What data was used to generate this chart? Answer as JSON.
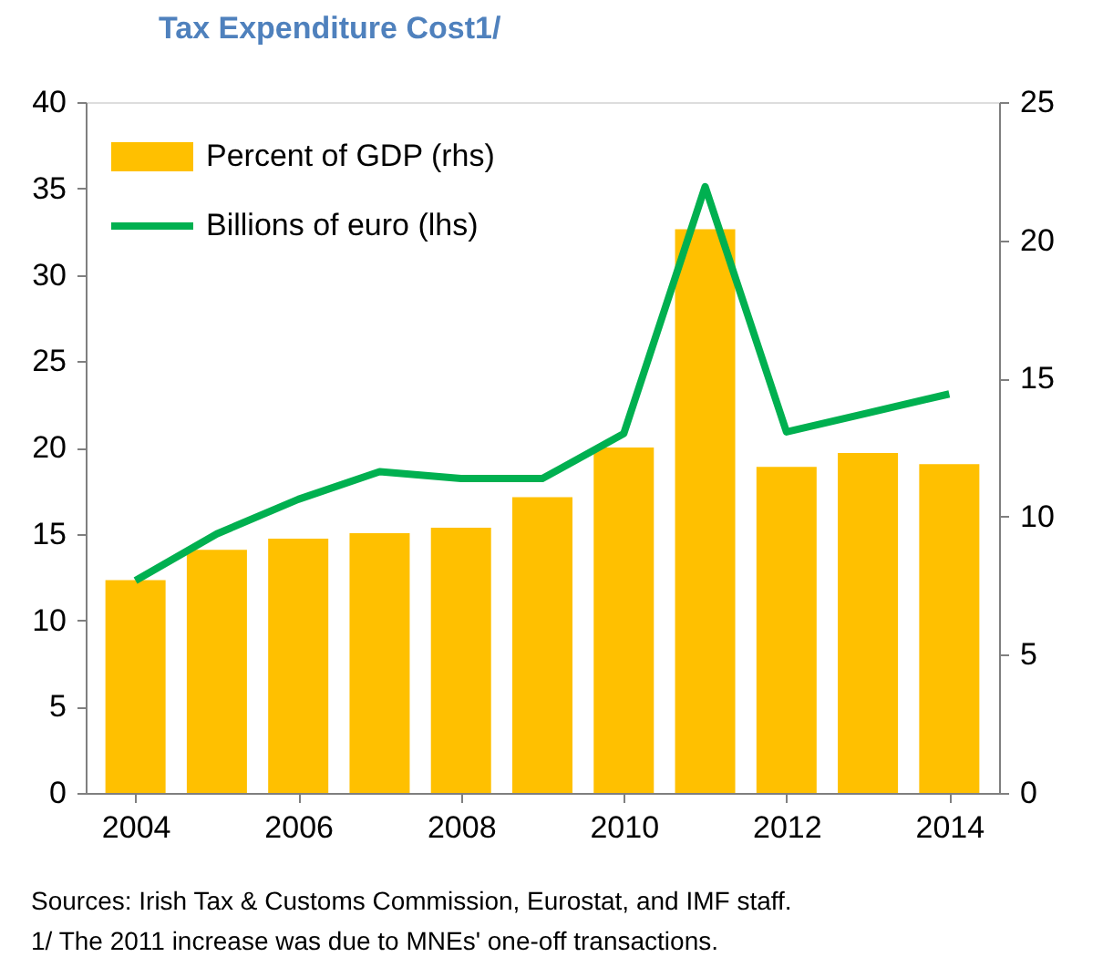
{
  "chart_data": {
    "type": "bar",
    "title": "Tax Expenditure Cost1/",
    "categories": [
      "2004",
      null,
      "2006",
      null,
      "2008",
      null,
      "2010",
      null,
      "2012",
      null,
      "2014"
    ],
    "series": [
      {
        "name": "Percent of GDP (rhs)",
        "axis": "y2",
        "color": "#ffc000",
        "values": [
          7.7,
          8.8,
          9.2,
          9.4,
          9.6,
          10.7,
          12.5,
          20.4,
          11.8,
          12.3,
          11.9
        ]
      },
      {
        "name": "Billions of euro (lhs)",
        "type": "line",
        "color": "#00b050",
        "values": [
          12.3,
          15.0,
          17.0,
          18.6,
          18.2,
          18.2,
          20.8,
          35.1,
          20.9,
          22.0,
          23.1
        ]
      }
    ],
    "ylim": [
      0,
      40
    ],
    "yticks": [
      0,
      5,
      10,
      15,
      20,
      25,
      30,
      35,
      40
    ],
    "y2lim": [
      0,
      25
    ],
    "y2ticks": [
      0,
      5,
      10,
      15,
      20,
      25
    ],
    "legend": "top left",
    "grid": false,
    "annotations": [
      "Sources: Irish Tax & Customs Commission, Eurostat, and IMF staff.",
      "1/ The 2011 increase was due to MNEs' one-off transactions."
    ]
  }
}
